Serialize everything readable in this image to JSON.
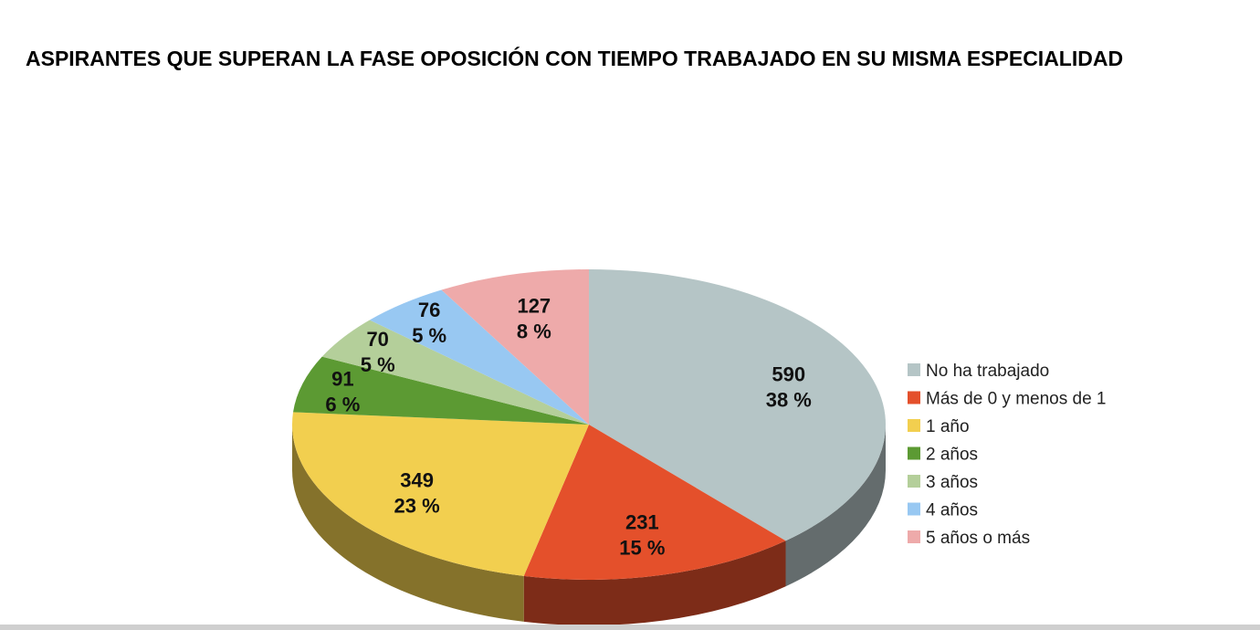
{
  "chart_data": {
    "type": "pie",
    "title": "ASPIRANTES QUE SUPERAN LA FASE OPOSICIÓN CON TIEMPO TRABAJADO EN SU MISMA ESPECIALIDAD",
    "style": "3d",
    "legend_position": "right",
    "slices": [
      {
        "label": "No ha trabajado",
        "value": 590,
        "percent_label": "38 %",
        "color": "#b5c5c6"
      },
      {
        "label": "Más de 0 y menos de 1",
        "value": 231,
        "percent_label": "15 %",
        "color": "#e4502b"
      },
      {
        "label": "1 año",
        "value": 349,
        "percent_label": "23 %",
        "color": "#f2cf4f"
      },
      {
        "label": "2 años",
        "value": 91,
        "percent_label": "6 %",
        "color": "#5c9a33"
      },
      {
        "label": "3 años",
        "value": 70,
        "percent_label": "5 %",
        "color": "#b4cf9a"
      },
      {
        "label": "4 años",
        "value": 76,
        "percent_label": "5 %",
        "color": "#98c8f2"
      },
      {
        "label": "5 años o más",
        "value": 127,
        "percent_label": "8 %",
        "color": "#eeaaaa"
      }
    ]
  }
}
